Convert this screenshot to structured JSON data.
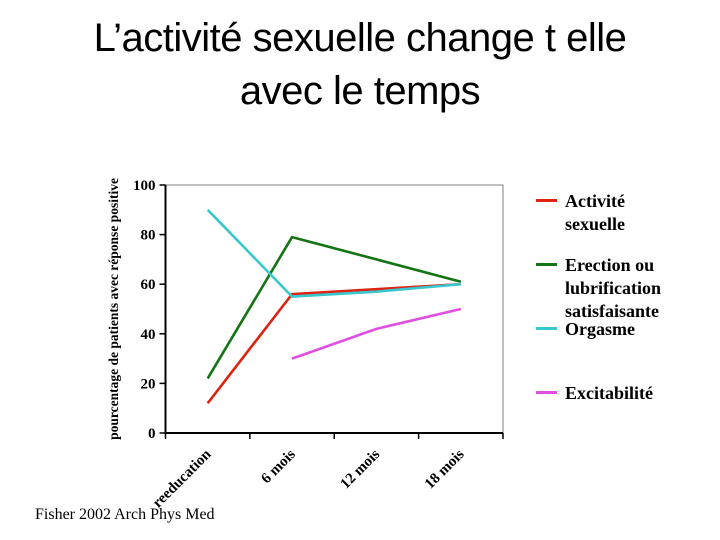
{
  "title": "L’activité sexuelle change t elle\navec le temps",
  "citation": "Fisher 2002 Arch Phys Med",
  "chart_data": {
    "type": "line",
    "title": "",
    "categories": [
      "reeducation",
      "6 mois",
      "12 mois",
      "18 mois"
    ],
    "series": [
      {
        "name": "Activité sexuelle",
        "color": "#dd2211",
        "values": [
          12,
          56,
          58,
          60
        ]
      },
      {
        "name": "Erection ou lubrification satisfaisante",
        "color": "#137413",
        "values": [
          22,
          79,
          70,
          61
        ]
      },
      {
        "name": "Orgasme",
        "color": "#38c7cd",
        "values": [
          90,
          55,
          57,
          60
        ]
      },
      {
        "name": "Excitabilité",
        "color": "#e04fe0",
        "values": [
          null,
          30,
          42,
          50
        ]
      }
    ],
    "xlabel": "",
    "ylabel": "pourcentage de patients avec réponse positive",
    "ylim": [
      0,
      100
    ],
    "yticks": [
      0,
      20,
      40,
      60,
      80,
      100
    ],
    "grid": false,
    "legend_position": "right"
  }
}
